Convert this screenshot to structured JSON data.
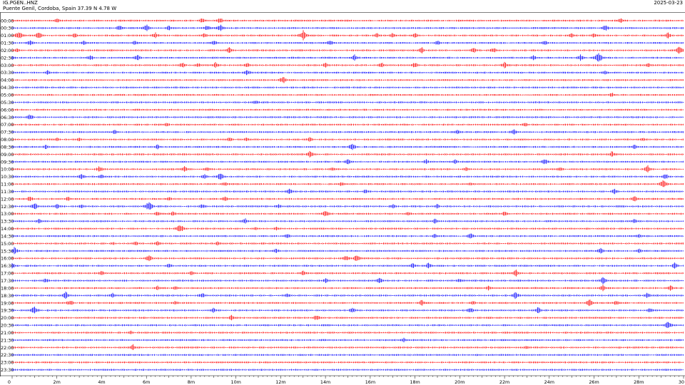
{
  "header": {
    "station": "IG.PGEN..HNZ",
    "location": "Puente Genil, Cordoba, Spain  37.39 N 4.78 W",
    "date": "2025-03-23"
  },
  "chart_data": {
    "type": "helicorder",
    "title": "",
    "xlabel": "",
    "ylabel": "",
    "row_labels": [
      "00:00",
      "00:30",
      "01:00",
      "01:30",
      "02:00",
      "02:30",
      "03:00",
      "03:30",
      "04:00",
      "04:30",
      "05:00",
      "05:30",
      "06:00",
      "06:30",
      "07:00",
      "07:30",
      "08:00",
      "08:30",
      "09:00",
      "09:30",
      "10:00",
      "10:30",
      "11:00",
      "11:30",
      "12:00",
      "12:30",
      "13:00",
      "13:30",
      "14:00",
      "14:30",
      "15:00",
      "15:30",
      "16:00",
      "16:30",
      "17:00",
      "17:30",
      "18:00",
      "18:30",
      "19:00",
      "19:30",
      "20:00",
      "20:30",
      "21:00",
      "21:30",
      "22:00",
      "22:30",
      "23:00",
      "23:30"
    ],
    "x_tick_labels": [
      "0",
      "2m",
      "4m",
      "6m",
      "8m",
      "10m",
      "12m",
      "14m",
      "16m",
      "18m",
      "20m",
      "22m",
      "24m",
      "26m",
      "28m",
      "30"
    ],
    "xlim_minutes": [
      0,
      30
    ],
    "colors": {
      "red_rows": "#ff0000",
      "blue_rows": "#0000ff"
    },
    "events": [
      {
        "row": 0,
        "t": 2.0,
        "a": 4
      },
      {
        "row": 0,
        "t": 8.5,
        "a": 5
      },
      {
        "row": 0,
        "t": 9.3,
        "a": 5
      },
      {
        "row": 0,
        "t": 27.2,
        "a": 4
      },
      {
        "row": 1,
        "t": 4.8,
        "a": 5
      },
      {
        "row": 1,
        "t": 6.0,
        "a": 6
      },
      {
        "row": 1,
        "t": 7.0,
        "a": 4
      },
      {
        "row": 1,
        "t": 8.7,
        "a": 5
      },
      {
        "row": 1,
        "t": 9.3,
        "a": 6
      },
      {
        "row": 1,
        "t": 26.5,
        "a": 5
      },
      {
        "row": 2,
        "t": 0.3,
        "a": 7
      },
      {
        "row": 2,
        "t": 1.2,
        "a": 6
      },
      {
        "row": 2,
        "t": 2.8,
        "a": 4
      },
      {
        "row": 2,
        "t": 6.4,
        "a": 5
      },
      {
        "row": 2,
        "t": 8.6,
        "a": 4
      },
      {
        "row": 2,
        "t": 13.0,
        "a": 8
      },
      {
        "row": 2,
        "t": 16.3,
        "a": 4
      },
      {
        "row": 2,
        "t": 17.0,
        "a": 4
      },
      {
        "row": 2,
        "t": 18.0,
        "a": 4
      },
      {
        "row": 2,
        "t": 25.0,
        "a": 4
      },
      {
        "row": 2,
        "t": 26.0,
        "a": 4
      },
      {
        "row": 2,
        "t": 29.3,
        "a": 5
      },
      {
        "row": 3,
        "t": 0.8,
        "a": 5
      },
      {
        "row": 3,
        "t": 3.2,
        "a": 4
      },
      {
        "row": 3,
        "t": 5.5,
        "a": 4
      },
      {
        "row": 3,
        "t": 9.0,
        "a": 5
      },
      {
        "row": 3,
        "t": 14.2,
        "a": 5
      },
      {
        "row": 3,
        "t": 19.0,
        "a": 4
      },
      {
        "row": 3,
        "t": 23.8,
        "a": 4
      },
      {
        "row": 4,
        "t": 0.2,
        "a": 4
      },
      {
        "row": 4,
        "t": 9.7,
        "a": 5
      },
      {
        "row": 4,
        "t": 18.3,
        "a": 5
      },
      {
        "row": 4,
        "t": 20.6,
        "a": 6
      },
      {
        "row": 4,
        "t": 21.5,
        "a": 5
      },
      {
        "row": 4,
        "t": 29.8,
        "a": 7
      },
      {
        "row": 5,
        "t": 0.0,
        "a": 4
      },
      {
        "row": 5,
        "t": 3.5,
        "a": 5
      },
      {
        "row": 5,
        "t": 5.6,
        "a": 5
      },
      {
        "row": 5,
        "t": 15.3,
        "a": 5
      },
      {
        "row": 5,
        "t": 23.3,
        "a": 4
      },
      {
        "row": 5,
        "t": 25.4,
        "a": 5
      },
      {
        "row": 5,
        "t": 26.2,
        "a": 9
      },
      {
        "row": 6,
        "t": 7.6,
        "a": 5
      },
      {
        "row": 6,
        "t": 8.3,
        "a": 4
      },
      {
        "row": 6,
        "t": 9.1,
        "a": 5
      },
      {
        "row": 6,
        "t": 10.5,
        "a": 4
      },
      {
        "row": 6,
        "t": 14.0,
        "a": 4
      },
      {
        "row": 6,
        "t": 16.5,
        "a": 5
      },
      {
        "row": 6,
        "t": 18.0,
        "a": 5
      },
      {
        "row": 6,
        "t": 22.0,
        "a": 5
      },
      {
        "row": 6,
        "t": 28.4,
        "a": 4
      },
      {
        "row": 7,
        "t": 1.6,
        "a": 4
      },
      {
        "row": 7,
        "t": 10.5,
        "a": 5
      },
      {
        "row": 7,
        "t": 26.5,
        "a": 4
      },
      {
        "row": 8,
        "t": 12.1,
        "a": 6
      },
      {
        "row": 10,
        "t": 26.8,
        "a": 4
      },
      {
        "row": 11,
        "t": 10.9,
        "a": 4
      },
      {
        "row": 13,
        "t": 0.8,
        "a": 5
      },
      {
        "row": 14,
        "t": 6.9,
        "a": 4
      },
      {
        "row": 14,
        "t": 22.9,
        "a": 4
      },
      {
        "row": 15,
        "t": 4.6,
        "a": 4
      },
      {
        "row": 15,
        "t": 19.9,
        "a": 4
      },
      {
        "row": 15,
        "t": 22.4,
        "a": 5
      },
      {
        "row": 16,
        "t": 2.0,
        "a": 3
      },
      {
        "row": 16,
        "t": 3.0,
        "a": 3
      },
      {
        "row": 16,
        "t": 9.7,
        "a": 4
      },
      {
        "row": 16,
        "t": 10.5,
        "a": 4
      },
      {
        "row": 16,
        "t": 13.3,
        "a": 4
      },
      {
        "row": 16,
        "t": 28.2,
        "a": 3
      },
      {
        "row": 17,
        "t": 1.5,
        "a": 4
      },
      {
        "row": 17,
        "t": 6.5,
        "a": 4
      },
      {
        "row": 17,
        "t": 15.2,
        "a": 6
      },
      {
        "row": 17,
        "t": 27.8,
        "a": 4
      },
      {
        "row": 18,
        "t": 13.3,
        "a": 6
      },
      {
        "row": 18,
        "t": 26.8,
        "a": 5
      },
      {
        "row": 19,
        "t": 15.0,
        "a": 4
      },
      {
        "row": 19,
        "t": 18.5,
        "a": 4
      },
      {
        "row": 19,
        "t": 19.8,
        "a": 4
      },
      {
        "row": 19,
        "t": 23.8,
        "a": 5
      },
      {
        "row": 20,
        "t": 3.9,
        "a": 5
      },
      {
        "row": 20,
        "t": 7.7,
        "a": 5
      },
      {
        "row": 20,
        "t": 8.7,
        "a": 4
      },
      {
        "row": 20,
        "t": 14.3,
        "a": 4
      },
      {
        "row": 20,
        "t": 20.3,
        "a": 4
      },
      {
        "row": 20,
        "t": 24.5,
        "a": 4
      },
      {
        "row": 20,
        "t": 28.4,
        "a": 6
      },
      {
        "row": 21,
        "t": 3.1,
        "a": 5
      },
      {
        "row": 21,
        "t": 4.0,
        "a": 4
      },
      {
        "row": 21,
        "t": 8.6,
        "a": 4
      },
      {
        "row": 21,
        "t": 9.3,
        "a": 6
      },
      {
        "row": 21,
        "t": 29.2,
        "a": 5
      },
      {
        "row": 22,
        "t": 9.5,
        "a": 4
      },
      {
        "row": 22,
        "t": 14.7,
        "a": 4
      },
      {
        "row": 22,
        "t": 20.5,
        "a": 3
      },
      {
        "row": 22,
        "t": 29.1,
        "a": 8
      },
      {
        "row": 23,
        "t": 12.4,
        "a": 5
      },
      {
        "row": 23,
        "t": 15.8,
        "a": 4
      },
      {
        "row": 23,
        "t": 26.9,
        "a": 5
      },
      {
        "row": 24,
        "t": 0.8,
        "a": 5
      },
      {
        "row": 24,
        "t": 2.5,
        "a": 4
      },
      {
        "row": 24,
        "t": 7.0,
        "a": 4
      },
      {
        "row": 24,
        "t": 9.5,
        "a": 4
      },
      {
        "row": 24,
        "t": 27.8,
        "a": 5
      },
      {
        "row": 25,
        "t": 1.0,
        "a": 6
      },
      {
        "row": 25,
        "t": 2.0,
        "a": 4
      },
      {
        "row": 25,
        "t": 3.1,
        "a": 4
      },
      {
        "row": 25,
        "t": 6.1,
        "a": 8
      },
      {
        "row": 25,
        "t": 8.5,
        "a": 4
      },
      {
        "row": 25,
        "t": 11.9,
        "a": 4
      },
      {
        "row": 25,
        "t": 17.0,
        "a": 4
      },
      {
        "row": 25,
        "t": 19.0,
        "a": 4
      },
      {
        "row": 26,
        "t": 6.5,
        "a": 4
      },
      {
        "row": 26,
        "t": 7.2,
        "a": 4
      },
      {
        "row": 26,
        "t": 14.0,
        "a": 6
      },
      {
        "row": 26,
        "t": 17.7,
        "a": 4
      },
      {
        "row": 26,
        "t": 22.0,
        "a": 4
      },
      {
        "row": 27,
        "t": 1.2,
        "a": 4
      },
      {
        "row": 27,
        "t": 10.4,
        "a": 5
      },
      {
        "row": 27,
        "t": 18.9,
        "a": 4
      },
      {
        "row": 27,
        "t": 27.8,
        "a": 4
      },
      {
        "row": 28,
        "t": 7.5,
        "a": 8
      },
      {
        "row": 28,
        "t": 10.9,
        "a": 3
      },
      {
        "row": 28,
        "t": 11.8,
        "a": 3
      },
      {
        "row": 29,
        "t": 12.3,
        "a": 4
      },
      {
        "row": 29,
        "t": 18.9,
        "a": 4
      },
      {
        "row": 29,
        "t": 20.5,
        "a": 5
      },
      {
        "row": 29,
        "t": 28.0,
        "a": 4
      },
      {
        "row": 30,
        "t": 4.5,
        "a": 3
      },
      {
        "row": 30,
        "t": 5.5,
        "a": 4
      },
      {
        "row": 30,
        "t": 6.5,
        "a": 4
      },
      {
        "row": 30,
        "t": 9.2,
        "a": 4
      },
      {
        "row": 31,
        "t": 0.1,
        "a": 6
      },
      {
        "row": 31,
        "t": 11.8,
        "a": 4
      },
      {
        "row": 31,
        "t": 26.3,
        "a": 5
      },
      {
        "row": 31,
        "t": 28.0,
        "a": 4
      },
      {
        "row": 32,
        "t": 6.1,
        "a": 6
      },
      {
        "row": 32,
        "t": 14.9,
        "a": 5
      },
      {
        "row": 32,
        "t": 15.4,
        "a": 6
      },
      {
        "row": 33,
        "t": 0.0,
        "a": 5
      },
      {
        "row": 33,
        "t": 7.0,
        "a": 4
      },
      {
        "row": 33,
        "t": 17.9,
        "a": 5
      },
      {
        "row": 33,
        "t": 18.6,
        "a": 5
      },
      {
        "row": 33,
        "t": 29.6,
        "a": 5
      },
      {
        "row": 34,
        "t": 4.0,
        "a": 4
      },
      {
        "row": 34,
        "t": 8.0,
        "a": 4
      },
      {
        "row": 34,
        "t": 13.0,
        "a": 4
      },
      {
        "row": 34,
        "t": 22.5,
        "a": 6
      },
      {
        "row": 35,
        "t": 1.5,
        "a": 4
      },
      {
        "row": 35,
        "t": 14.0,
        "a": 4
      },
      {
        "row": 35,
        "t": 16.4,
        "a": 5
      },
      {
        "row": 35,
        "t": 20.0,
        "a": 4
      },
      {
        "row": 35,
        "t": 26.4,
        "a": 6
      },
      {
        "row": 36,
        "t": 6.5,
        "a": 4
      },
      {
        "row": 36,
        "t": 7.3,
        "a": 4
      },
      {
        "row": 36,
        "t": 21.3,
        "a": 4
      },
      {
        "row": 36,
        "t": 26.4,
        "a": 5
      },
      {
        "row": 36,
        "t": 29.4,
        "a": 5
      },
      {
        "row": 37,
        "t": 2.4,
        "a": 6
      },
      {
        "row": 37,
        "t": 4.5,
        "a": 4
      },
      {
        "row": 37,
        "t": 8.5,
        "a": 5
      },
      {
        "row": 37,
        "t": 12.3,
        "a": 4
      },
      {
        "row": 37,
        "t": 22.5,
        "a": 6
      },
      {
        "row": 37,
        "t": 28.4,
        "a": 5
      },
      {
        "row": 38,
        "t": 2.6,
        "a": 5
      },
      {
        "row": 38,
        "t": 7.3,
        "a": 4
      },
      {
        "row": 38,
        "t": 18.3,
        "a": 5
      },
      {
        "row": 38,
        "t": 20.6,
        "a": 4
      },
      {
        "row": 38,
        "t": 25.8,
        "a": 6
      },
      {
        "row": 38,
        "t": 27.0,
        "a": 4
      },
      {
        "row": 39,
        "t": 1.0,
        "a": 7
      },
      {
        "row": 39,
        "t": 9.0,
        "a": 4
      },
      {
        "row": 39,
        "t": 15.2,
        "a": 5
      },
      {
        "row": 39,
        "t": 20.5,
        "a": 5
      },
      {
        "row": 39,
        "t": 23.5,
        "a": 5
      },
      {
        "row": 39,
        "t": 28.5,
        "a": 4
      },
      {
        "row": 40,
        "t": 9.8,
        "a": 5
      },
      {
        "row": 40,
        "t": 13.6,
        "a": 5
      },
      {
        "row": 41,
        "t": 29.3,
        "a": 7
      },
      {
        "row": 42,
        "t": 5.3,
        "a": 3
      },
      {
        "row": 43,
        "t": 17.5,
        "a": 4
      },
      {
        "row": 44,
        "t": 5.4,
        "a": 5
      },
      {
        "row": 44,
        "t": 23.0,
        "a": 3
      }
    ]
  }
}
